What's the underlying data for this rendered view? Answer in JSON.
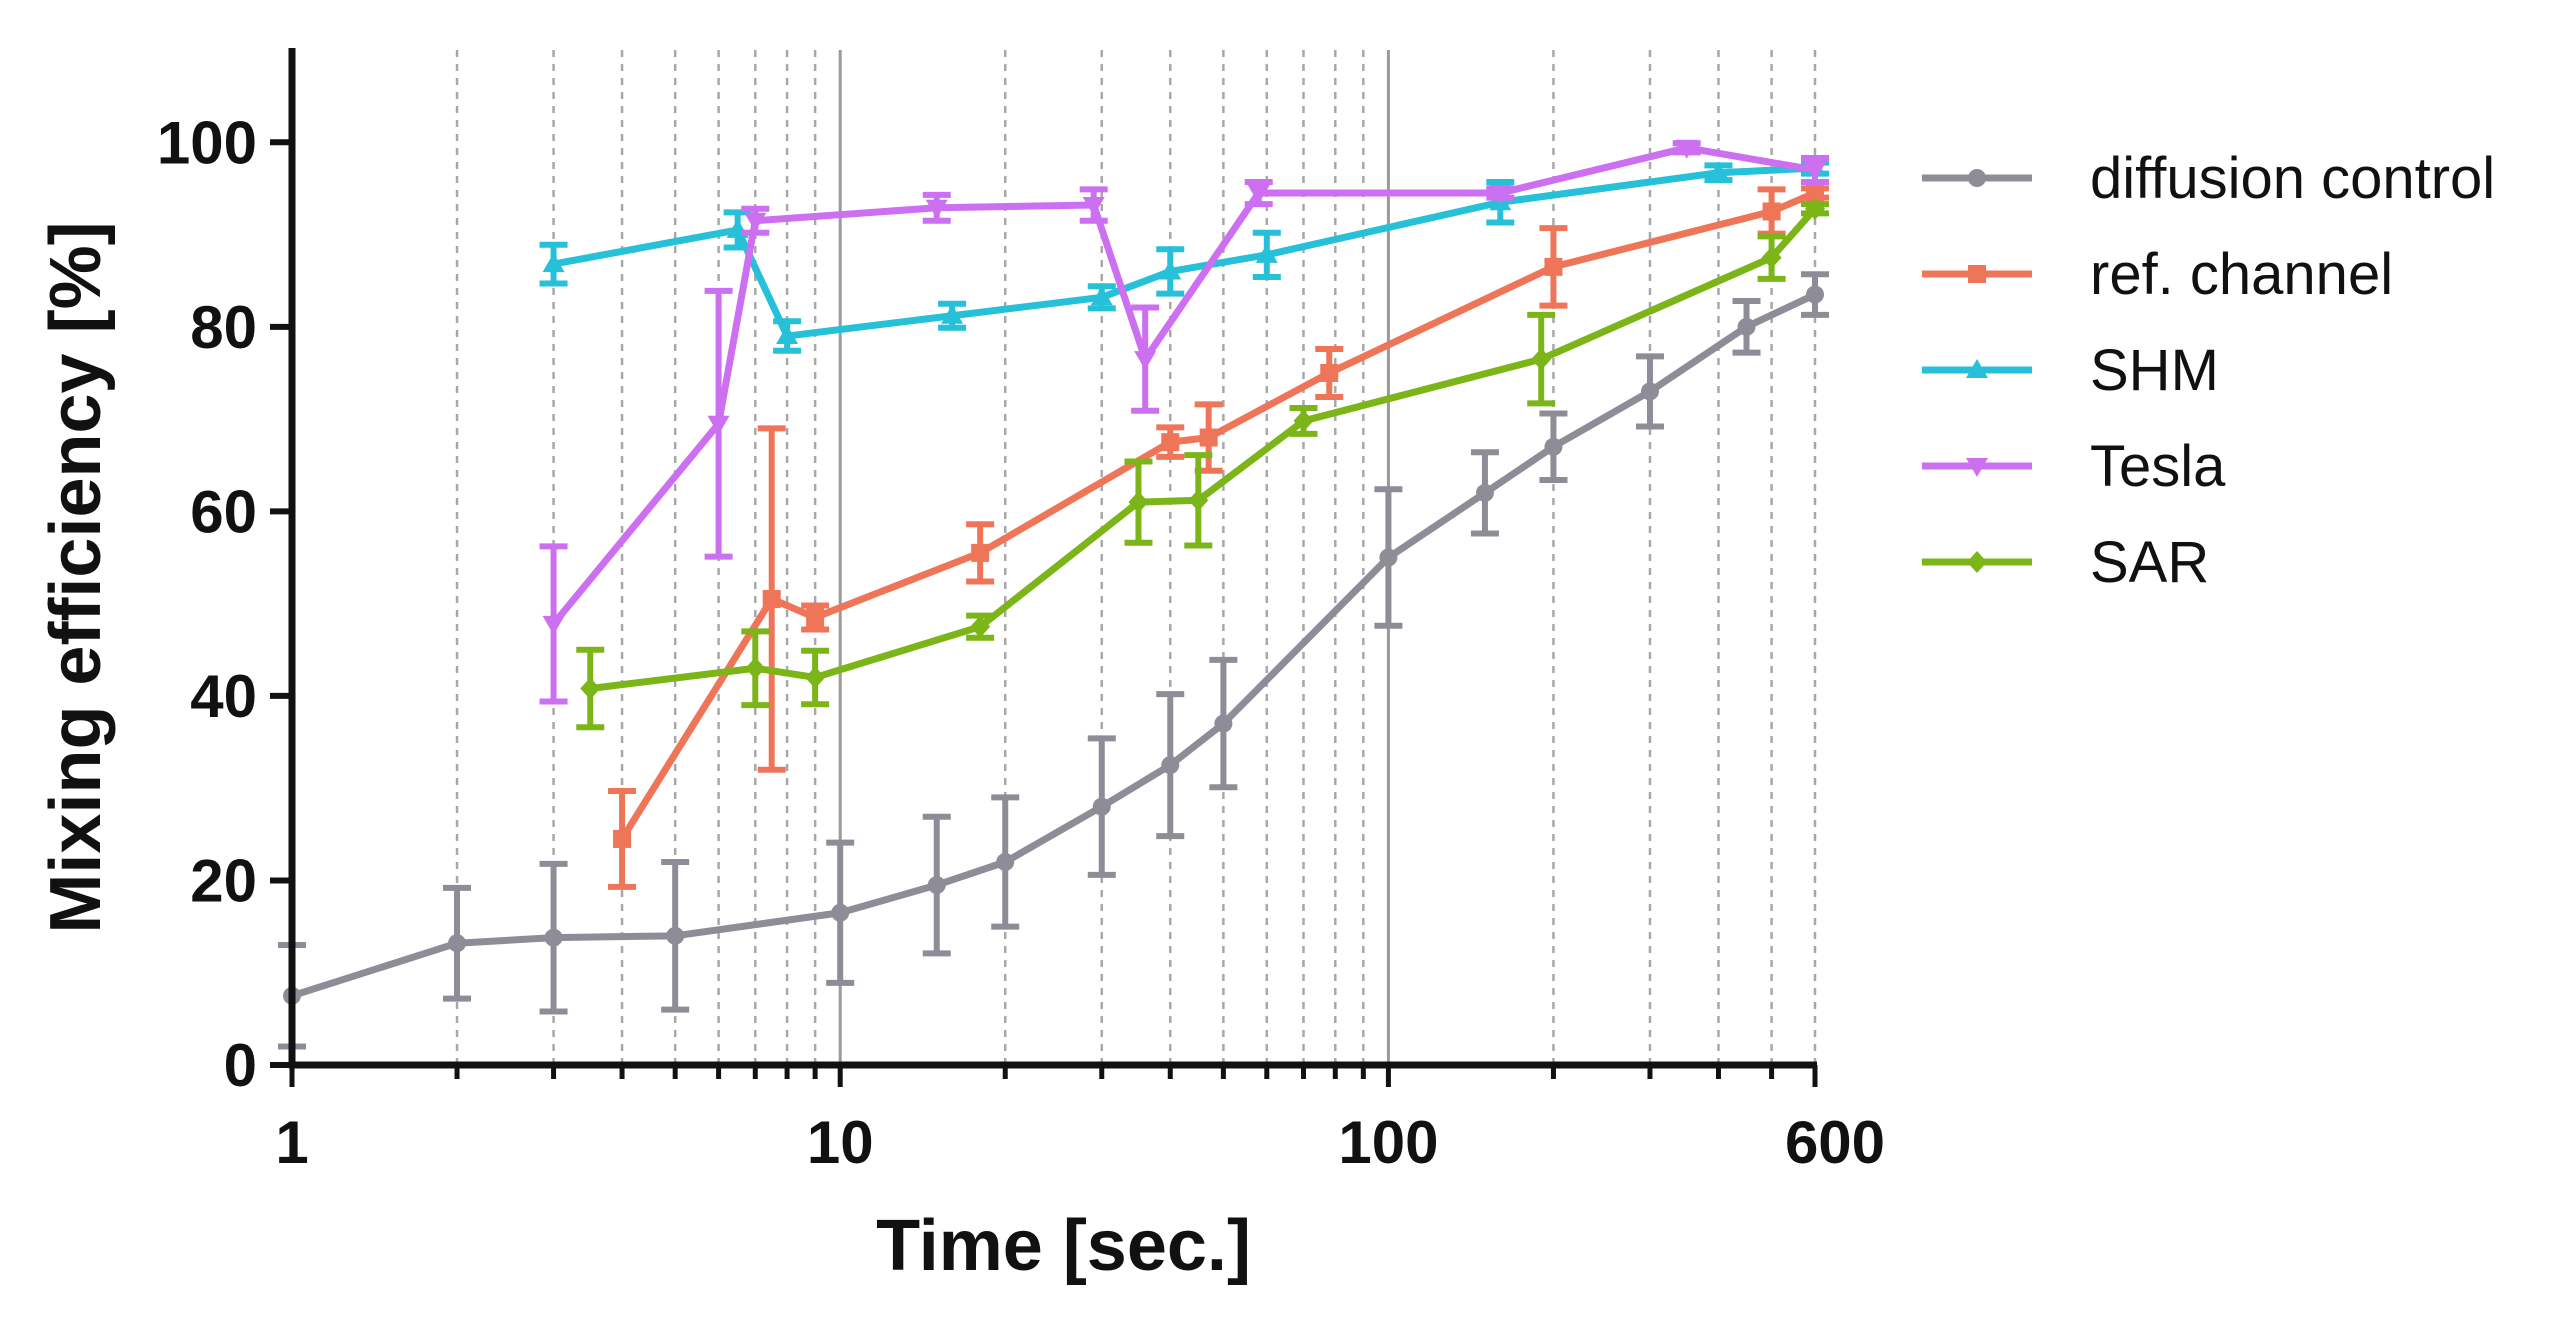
{
  "chart_data": {
    "type": "line",
    "title": "",
    "xlabel": "Time [sec.]",
    "ylabel": "Mixing efficiency [%]",
    "x_scale": "log",
    "xlim": [
      1,
      600
    ],
    "ylim": [
      0,
      110
    ],
    "x_ticks": [
      1,
      10,
      100,
      600
    ],
    "x_tick_labels": [
      "1",
      "10",
      "100",
      "600"
    ],
    "y_ticks": [
      0,
      20,
      40,
      60,
      80,
      100
    ],
    "y_tick_labels": [
      "0",
      "20",
      "40",
      "60",
      "80",
      "100"
    ],
    "grid": "vertical dashed at minor log ticks, solid at 10 and 100",
    "legend_position": "right",
    "series": [
      {
        "name": "diffusion control",
        "color": "#8e8c97",
        "marker": "circle",
        "points": [
          {
            "x": 1,
            "y": 7.5,
            "err": 5.5
          },
          {
            "x": 2,
            "y": 13.2,
            "err": 6
          },
          {
            "x": 3,
            "y": 13.8,
            "err": 8
          },
          {
            "x": 5,
            "y": 14,
            "err": 8
          },
          {
            "x": 10,
            "y": 16.5,
            "err": 7.6
          },
          {
            "x": 15,
            "y": 19.5,
            "err": 7.4
          },
          {
            "x": 20,
            "y": 22,
            "err": 7
          },
          {
            "x": 30,
            "y": 28,
            "err": 7.4
          },
          {
            "x": 40,
            "y": 32.5,
            "err": 7.7
          },
          {
            "x": 50,
            "y": 37,
            "err": 6.9
          },
          {
            "x": 100,
            "y": 55,
            "err": 7.4
          },
          {
            "x": 150,
            "y": 62,
            "err": 4.4
          },
          {
            "x": 200,
            "y": 67,
            "err": 3.6
          },
          {
            "x": 300,
            "y": 73,
            "err": 3.8
          },
          {
            "x": 450,
            "y": 80,
            "err": 2.8
          },
          {
            "x": 600,
            "y": 83.5,
            "err": 2.2
          }
        ]
      },
      {
        "name": "ref. channel",
        "color": "#ef7558",
        "marker": "square",
        "points": [
          {
            "x": 4,
            "y": 24.5,
            "err": 5.2
          },
          {
            "x": 7.5,
            "y": 50.5,
            "err": 18.5
          },
          {
            "x": 9,
            "y": 48.5,
            "err": 1.3
          },
          {
            "x": 18,
            "y": 55.5,
            "err": 3.1
          },
          {
            "x": 40,
            "y": 67.5,
            "err": 1.6
          },
          {
            "x": 47,
            "y": 68,
            "err": 3.6
          },
          {
            "x": 78,
            "y": 75,
            "err": 2.6
          },
          {
            "x": 200,
            "y": 86.5,
            "err": 4.2
          },
          {
            "x": 500,
            "y": 92.5,
            "err": 2.4
          },
          {
            "x": 600,
            "y": 94.5,
            "err": 0.5
          }
        ]
      },
      {
        "name": "SHM",
        "color": "#26c0d9",
        "marker": "triangle-up",
        "points": [
          {
            "x": 3,
            "y": 86.8,
            "err": 2.1
          },
          {
            "x": 6.5,
            "y": 90.5,
            "err": 1.9
          },
          {
            "x": 8,
            "y": 79,
            "err": 1.6
          },
          {
            "x": 16,
            "y": 81.2,
            "err": 1.3
          },
          {
            "x": 30,
            "y": 83.2,
            "err": 1.2
          },
          {
            "x": 40,
            "y": 86,
            "err": 2.4
          },
          {
            "x": 60,
            "y": 87.8,
            "err": 2.4
          },
          {
            "x": 160,
            "y": 93.5,
            "err": 2.2
          },
          {
            "x": 400,
            "y": 96.7,
            "err": 0.8
          },
          {
            "x": 600,
            "y": 97.2,
            "err": 0.6
          }
        ]
      },
      {
        "name": "Tesla",
        "color": "#cc6ff0",
        "marker": "triangle-down",
        "points": [
          {
            "x": 3,
            "y": 47.8,
            "err": 8.4
          },
          {
            "x": 6,
            "y": 69.5,
            "err": 14.4
          },
          {
            "x": 7,
            "y": 91.5,
            "err": 1.3
          },
          {
            "x": 15,
            "y": 92.9,
            "err": 1.4
          },
          {
            "x": 29,
            "y": 93.2,
            "err": 1.7
          },
          {
            "x": 36,
            "y": 76.5,
            "err": 5.6
          },
          {
            "x": 58,
            "y": 94.5,
            "err": 1.2
          },
          {
            "x": 160,
            "y": 94.5,
            "err": 0.5
          },
          {
            "x": 350,
            "y": 99.4,
            "err": 0.5
          },
          {
            "x": 600,
            "y": 97,
            "err": 1.3
          }
        ]
      },
      {
        "name": "SAR",
        "color": "#7cb518",
        "marker": "diamond",
        "points": [
          {
            "x": 3.5,
            "y": 40.8,
            "err": 4.2
          },
          {
            "x": 7,
            "y": 43,
            "err": 4
          },
          {
            "x": 9,
            "y": 42,
            "err": 2.9
          },
          {
            "x": 18,
            "y": 47.5,
            "err": 1.2
          },
          {
            "x": 35,
            "y": 61,
            "err": 4.4
          },
          {
            "x": 45,
            "y": 61.2,
            "err": 4.9
          },
          {
            "x": 70,
            "y": 69.8,
            "err": 1.4
          },
          {
            "x": 190,
            "y": 76.5,
            "err": 4.8
          },
          {
            "x": 500,
            "y": 87.5,
            "err": 2.3
          },
          {
            "x": 600,
            "y": 92.8,
            "err": 0.5
          }
        ]
      }
    ]
  }
}
